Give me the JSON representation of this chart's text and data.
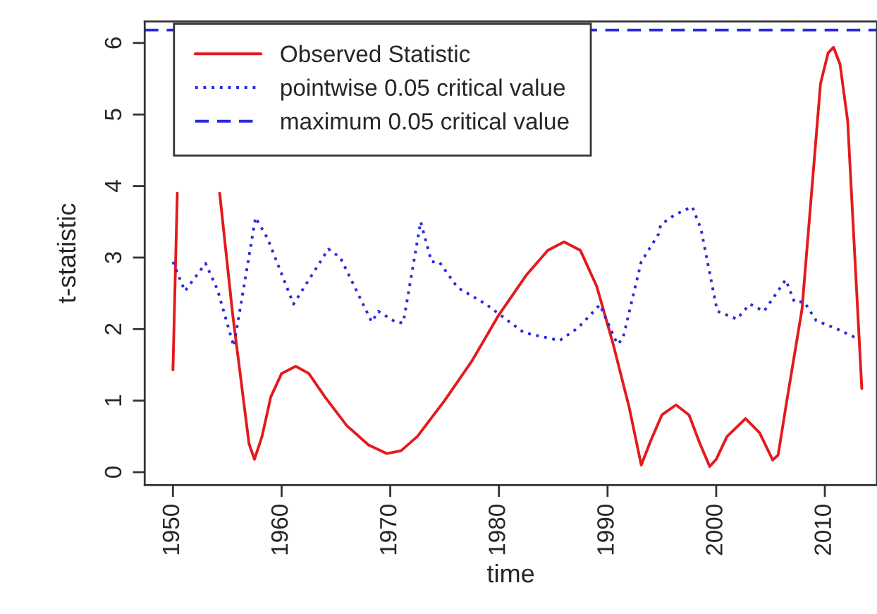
{
  "chart_data": {
    "type": "line",
    "xlabel": "time",
    "ylabel": "t-statistic",
    "xlim": [
      1947.4,
      2014.8
    ],
    "ylim": [
      -0.18,
      6.3
    ],
    "xticks": [
      1950,
      1960,
      1970,
      1980,
      1990,
      2000,
      2010
    ],
    "yticks": [
      0,
      1,
      2,
      3,
      4,
      5,
      6
    ],
    "grid": false,
    "legend": "top left",
    "marker": "none",
    "series": [
      {
        "name": "Observed Statistic",
        "color": "#e41a1c",
        "line_style": "solid",
        "x": [
          1950.0,
          1950.4,
          1952.0,
          1954.3,
          1955.5,
          1956.5,
          1957.0,
          1957.5,
          1958.2,
          1959.0,
          1960.0,
          1961.3,
          1962.5,
          1964.0,
          1966.0,
          1968.0,
          1969.7,
          1971.0,
          1972.5,
          1975.0,
          1977.5,
          1980.0,
          1982.5,
          1984.5,
          1986.0,
          1987.5,
          1989.0,
          1990.5,
          1992.0,
          1993.1,
          1994.0,
          1995.0,
          1996.3,
          1997.5,
          1998.5,
          1999.4,
          2000.0,
          2001.0,
          2002.7,
          2004.0,
          2005.2,
          2005.7,
          2006.5,
          2007.9,
          2009.6,
          2010.3,
          2010.8,
          2011.4,
          2012.1,
          2013.4
        ],
        "values": [
          1.43,
          3.9,
          null,
          3.9,
          2.2,
          1.0,
          0.4,
          0.18,
          0.5,
          1.05,
          1.38,
          1.48,
          1.38,
          1.05,
          0.65,
          0.38,
          0.26,
          0.3,
          0.5,
          1.0,
          1.55,
          2.2,
          2.75,
          3.1,
          3.22,
          3.1,
          2.6,
          1.8,
          0.9,
          0.1,
          0.45,
          0.8,
          0.94,
          0.8,
          0.4,
          0.08,
          0.18,
          0.5,
          0.75,
          0.55,
          0.17,
          0.24,
          1.0,
          2.28,
          5.43,
          5.86,
          5.94,
          5.7,
          4.91,
          1.17
        ]
      },
      {
        "name": "pointwise 0.05 critical value",
        "color": "#2b2bd9",
        "line_style": "dotted",
        "x": [
          1950.0,
          1951.1,
          1953.0,
          1954.1,
          1955.6,
          1957.6,
          1958.7,
          1961.1,
          1964.3,
          1965.4,
          1968.3,
          1968.9,
          1970.6,
          1971.2,
          1972.8,
          1973.8,
          1974.5,
          1976.2,
          1978.8,
          1982.3,
          1985.6,
          1987.3,
          1989.3,
          1990.9,
          1991.4,
          1993.1,
          1994.7,
          1994.9,
          1996.2,
          1997.8,
          1998.6,
          2000.1,
          2001.9,
          2003.1,
          2004.4,
          2006.4,
          2007.2,
          2008.1,
          2009.2,
          2011.3,
          2013.1
        ],
        "values": [
          2.94,
          2.53,
          2.92,
          2.55,
          1.76,
          3.56,
          3.27,
          2.35,
          3.12,
          3.0,
          2.1,
          2.25,
          2.09,
          2.09,
          3.5,
          2.94,
          2.94,
          2.58,
          2.35,
          1.95,
          1.84,
          2.02,
          2.34,
          1.79,
          1.86,
          2.94,
          3.33,
          3.46,
          3.6,
          3.71,
          3.4,
          2.25,
          2.14,
          2.35,
          2.25,
          2.69,
          2.38,
          2.38,
          2.12,
          1.99,
          1.86
        ]
      }
    ],
    "ref_lines": [
      {
        "axis": "y",
        "value": 6.18,
        "label": "maximum 0.05 critical value",
        "color": "#2b2bd9",
        "line_style": "dashed"
      }
    ]
  }
}
